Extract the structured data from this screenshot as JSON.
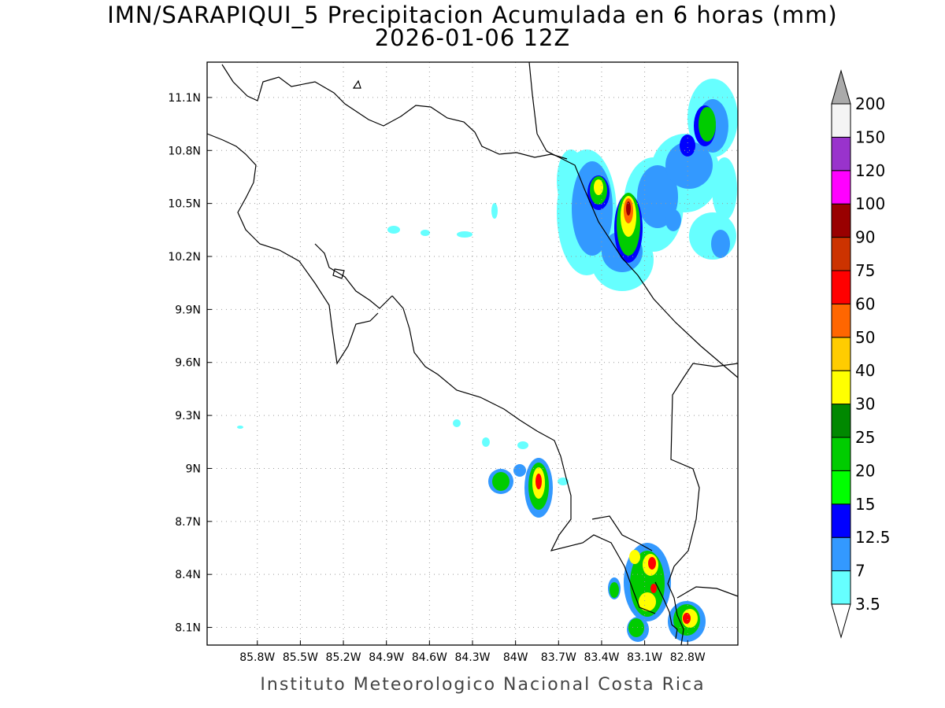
{
  "title": {
    "line1": "IMN/SARAPIQUI_5 Precipitacion Acumulada en 6 horas (mm)",
    "line2": "2026-01-06 12Z"
  },
  "footer": "Instituto Meteorologico Nacional Costa Rica",
  "map": {
    "lon_range": [
      -86.15,
      -82.45
    ],
    "lat_range": [
      8.0,
      11.3
    ],
    "lon_ticks": [
      {
        "value": -85.8,
        "label": "85.8W"
      },
      {
        "value": -85.5,
        "label": "85.5W"
      },
      {
        "value": -85.2,
        "label": "85.2W"
      },
      {
        "value": -84.9,
        "label": "84.9W"
      },
      {
        "value": -84.6,
        "label": "84.6W"
      },
      {
        "value": -84.3,
        "label": "84.3W"
      },
      {
        "value": -84.0,
        "label": "84W"
      },
      {
        "value": -83.7,
        "label": "83.7W"
      },
      {
        "value": -83.4,
        "label": "83.4W"
      },
      {
        "value": -83.1,
        "label": "83.1W"
      },
      {
        "value": -82.8,
        "label": "82.8W"
      }
    ],
    "lat_ticks": [
      {
        "value": 11.1,
        "label": "11.1N"
      },
      {
        "value": 10.8,
        "label": "10.8N"
      },
      {
        "value": 10.5,
        "label": "10.5N"
      },
      {
        "value": 10.2,
        "label": "10.2N"
      },
      {
        "value": 9.9,
        "label": "9.9N"
      },
      {
        "value": 9.6,
        "label": "9.6N"
      },
      {
        "value": 9.3,
        "label": "9.3N"
      },
      {
        "value": 9.0,
        "label": "9N"
      },
      {
        "value": 8.7,
        "label": "8.7N"
      },
      {
        "value": 8.4,
        "label": "8.4N"
      },
      {
        "value": 8.1,
        "label": "8.1N"
      }
    ],
    "grid": true,
    "precip_cells": [
      {
        "lon": -83.05,
        "lat": 10.55,
        "level": 1
      },
      {
        "lon": -82.85,
        "lat": 10.85,
        "level": 1
      },
      {
        "lon": -83.2,
        "lat": 10.4,
        "level": 2
      },
      {
        "lon": -82.75,
        "lat": 10.95,
        "level": 2
      },
      {
        "lon": -83.3,
        "lat": 10.6,
        "level": 4
      },
      {
        "lon": -83.12,
        "lat": 10.45,
        "level": 5
      },
      {
        "lon": -82.7,
        "lat": 11.0,
        "level": 4
      },
      {
        "lon": -83.12,
        "lat": 10.48,
        "level": 7
      },
      {
        "lon": -83.85,
        "lat": 8.95,
        "level": 2
      },
      {
        "lon": -83.85,
        "lat": 8.9,
        "level": 5
      },
      {
        "lon": -83.85,
        "lat": 8.9,
        "level": 7
      },
      {
        "lon": -84.05,
        "lat": 8.92,
        "level": 4
      },
      {
        "lon": -83.0,
        "lat": 8.35,
        "level": 1
      },
      {
        "lon": -83.1,
        "lat": 8.4,
        "level": 4
      },
      {
        "lon": -83.05,
        "lat": 8.45,
        "level": 6
      },
      {
        "lon": -83.05,
        "lat": 8.25,
        "level": 6
      },
      {
        "lon": -82.75,
        "lat": 8.15,
        "level": 4
      },
      {
        "lon": -82.75,
        "lat": 8.15,
        "level": 8
      },
      {
        "lon": -83.15,
        "lat": 8.1,
        "level": 5
      }
    ]
  },
  "colorbar": {
    "levels": [
      {
        "label": "3.5",
        "color": "#66ffff"
      },
      {
        "label": "7",
        "color": "#3399ff"
      },
      {
        "label": "12.5",
        "color": "#0000ff"
      },
      {
        "label": "15",
        "color": "#00ff00"
      },
      {
        "label": "20",
        "color": "#00cc00"
      },
      {
        "label": "25",
        "color": "#008800"
      },
      {
        "label": "30",
        "color": "#ffff00"
      },
      {
        "label": "40",
        "color": "#ffcc00"
      },
      {
        "label": "50",
        "color": "#ff6600"
      },
      {
        "label": "60",
        "color": "#ff0000"
      },
      {
        "label": "75",
        "color": "#cc3300"
      },
      {
        "label": "90",
        "color": "#990000"
      },
      {
        "label": "100",
        "color": "#ff00ff"
      },
      {
        "label": "120",
        "color": "#9933cc"
      },
      {
        "label": "150",
        "color": "#f4f4f4"
      },
      {
        "label": "200",
        "color": "#aaaaaa"
      }
    ]
  }
}
